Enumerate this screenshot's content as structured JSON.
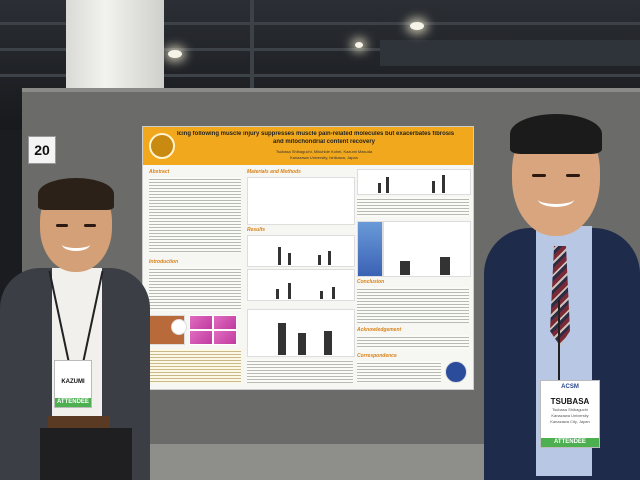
{
  "scene": {
    "board_number": "20"
  },
  "poster": {
    "title_line1": "Icing following muscle injury suppresses muscle pain-related molecules but exacerbates fibrosis",
    "title_line2": "and mitochondrial content recovery",
    "authors": "Tsubasa Shibaguchi, Mikuhide Kohei, Kazumi Masuda",
    "affiliation": "Kanazawa University, Ishikawa, Japan",
    "sections": {
      "abstract": "Abstract",
      "methods": "Materials and Methods",
      "results": "Results",
      "introduction": "Introduction",
      "conclusion": "Conclusion",
      "acknowledgement": "Acknowledgement",
      "correspondence": "Correspondence"
    }
  },
  "left_badge": {
    "name": "KAZUMI",
    "role": "ATTENDEE"
  },
  "right_badge": {
    "logo": "ACSM",
    "name": "TSUBASA",
    "fullname": "Tsubasa Shibaguchi",
    "org": "Kanazawa University",
    "location": "Kanazawa City, Japan",
    "role": "ATTENDEE"
  }
}
